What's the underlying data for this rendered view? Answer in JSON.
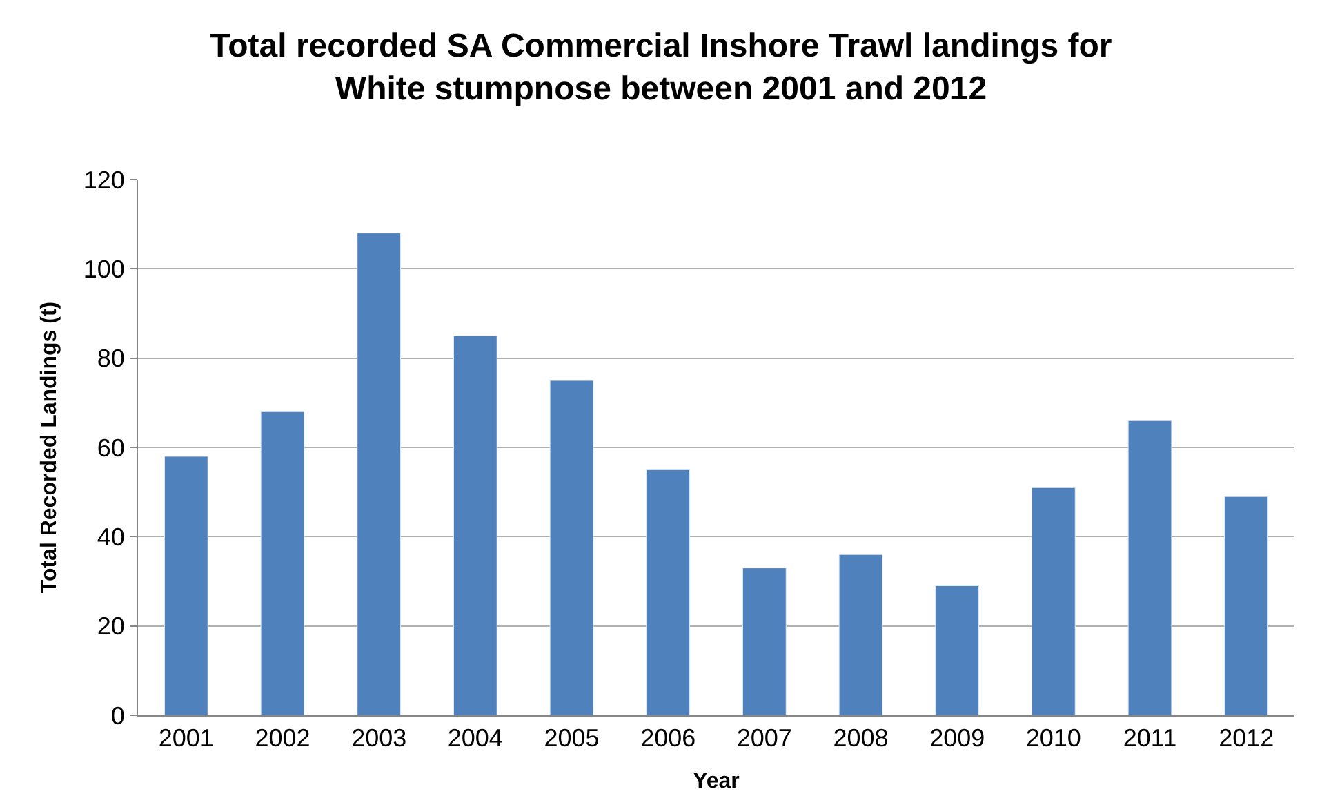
{
  "chart_data": {
    "type": "bar",
    "title": "Total recorded SA Commercial Inshore Trawl landings for White stumpnose between 2001 and 2012",
    "xlabel": "Year",
    "ylabel": "Total Recorded Landings (t)",
    "categories": [
      "2001",
      "2002",
      "2003",
      "2004",
      "2005",
      "2006",
      "2007",
      "2008",
      "2009",
      "2010",
      "2011",
      "2012"
    ],
    "values": [
      58,
      68,
      108,
      85,
      75,
      55,
      33,
      36,
      29,
      51,
      66,
      49
    ],
    "color": "#4f81bd",
    "ylim": [
      0,
      120
    ],
    "yticks": [
      0,
      20,
      40,
      60,
      80,
      100,
      120
    ],
    "grid": "y"
  }
}
